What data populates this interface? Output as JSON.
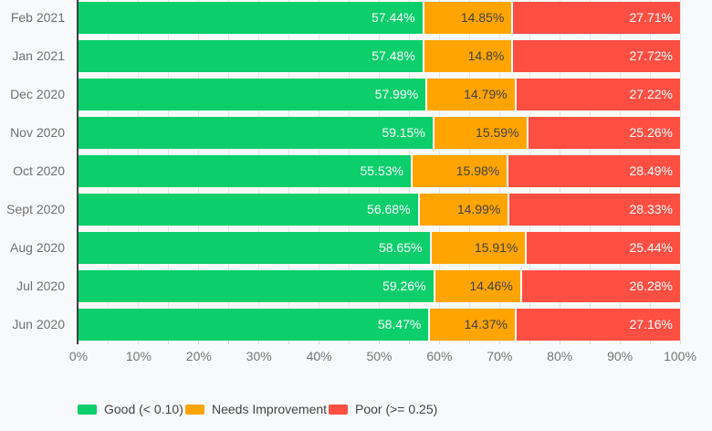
{
  "chart_data": {
    "type": "bar",
    "orientation": "horizontal",
    "stacked": true,
    "title": "",
    "categories": [
      "Feb 2021",
      "Jan 2021",
      "Dec 2020",
      "Nov 2020",
      "Oct 2020",
      "Sept 2020",
      "Aug 2020",
      "Jul 2020",
      "Jun 2020"
    ],
    "series": [
      {
        "name": "Good (< 0.10)",
        "slug": "good",
        "color": "#0cce6b",
        "label_color": "#ffffff",
        "values": [
          57.44,
          57.48,
          57.99,
          59.15,
          55.53,
          56.68,
          58.65,
          59.26,
          58.47
        ],
        "labels": [
          "57.44%",
          "57.48%",
          "57.99%",
          "59.15%",
          "55.53%",
          "56.68%",
          "58.65%",
          "59.26%",
          "58.47%"
        ]
      },
      {
        "name": "Needs Improvement",
        "slug": "needs-improvement",
        "color": "#ffa400",
        "label_color": "#424242",
        "values": [
          14.85,
          14.8,
          14.79,
          15.59,
          15.98,
          14.99,
          15.91,
          14.46,
          14.37
        ],
        "labels": [
          "14.85%",
          "14.8%",
          "14.79%",
          "15.59%",
          "15.98%",
          "14.99%",
          "15.91%",
          "14.46%",
          "14.37%"
        ]
      },
      {
        "name": "Poor (>= 0.25)",
        "slug": "poor",
        "color": "#ff4e42",
        "label_color": "#ffffff",
        "values": [
          27.71,
          27.72,
          27.22,
          25.26,
          28.49,
          28.33,
          25.44,
          26.28,
          27.16
        ],
        "labels": [
          "27.71%",
          "27.72%",
          "27.22%",
          "25.26%",
          "28.49%",
          "28.33%",
          "25.44%",
          "26.28%",
          "27.16%"
        ]
      }
    ],
    "x_ticks": [
      "0%",
      "10%",
      "20%",
      "30%",
      "40%",
      "50%",
      "60%",
      "70%",
      "80%",
      "90%",
      "100%"
    ],
    "xlim": [
      0,
      100
    ],
    "grid": {
      "vertical_step_percent": 5,
      "color": "#e4e7ea",
      "visible": true
    },
    "legend_position": "bottom",
    "legend": [
      {
        "label": "Good (< 0.10)",
        "color": "#0cce6b"
      },
      {
        "label": "Needs Improvement",
        "color": "#ffa400"
      },
      {
        "label": "Poor (>= 0.25)",
        "color": "#ff4e42"
      }
    ]
  }
}
